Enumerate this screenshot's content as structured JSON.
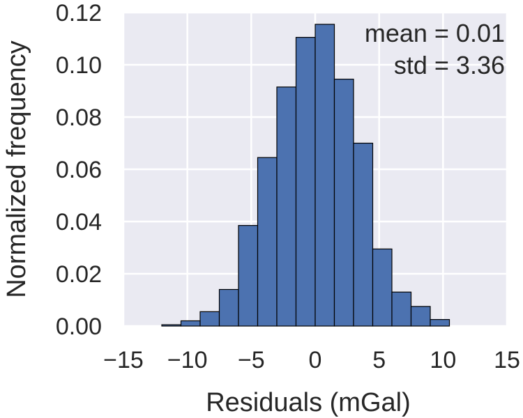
{
  "chart_data": {
    "type": "bar",
    "xlabel": "Residuals (mGal)",
    "ylabel": "Normalized frequency",
    "xlim": [
      -15,
      15
    ],
    "ylim": [
      0,
      0.12
    ],
    "xticks": [
      -15,
      -10,
      -5,
      0,
      5,
      10,
      15
    ],
    "xtick_labels": [
      "−15",
      "−10",
      "−5",
      "0",
      "5",
      "10",
      "15"
    ],
    "yticks": [
      0.0,
      0.02,
      0.04,
      0.06,
      0.08,
      0.1,
      0.12
    ],
    "ytick_labels": [
      "0.00",
      "0.02",
      "0.04",
      "0.06",
      "0.08",
      "0.10",
      "0.12"
    ],
    "grid": true,
    "bin_edges": [
      -12.0,
      -10.5,
      -9.0,
      -7.5,
      -6.0,
      -4.5,
      -3.0,
      -1.5,
      0.0,
      1.5,
      3.0,
      4.5,
      6.0,
      7.5,
      9.0,
      10.5
    ],
    "values": [
      0.0005,
      0.002,
      0.0055,
      0.014,
      0.0385,
      0.0645,
      0.0915,
      0.1105,
      0.1155,
      0.0945,
      0.07,
      0.0295,
      0.013,
      0.0075,
      0.0025
    ],
    "annotations": [
      "mean = 0.01",
      "std = 3.36"
    ],
    "colors": {
      "bar": "#4c72b0",
      "background": "#eaeaf2",
      "grid": "#ffffff",
      "edge": "#000000"
    }
  }
}
